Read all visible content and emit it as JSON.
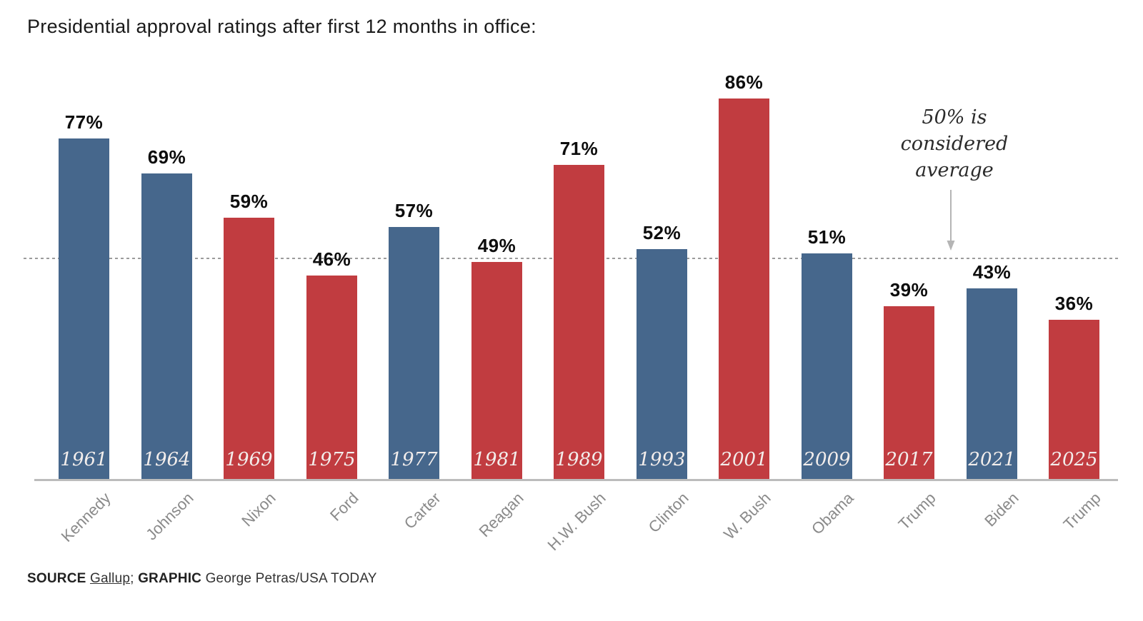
{
  "title": "Presidential approval ratings after first 12 months in office:",
  "chart_data": {
    "type": "bar",
    "categories": [
      "Kennedy",
      "Johnson",
      "Nixon",
      "Ford",
      "Carter",
      "Reagan",
      "H.W. Bush",
      "Clinton",
      "W. Bush",
      "Obama",
      "Trump",
      "Biden",
      "Trump"
    ],
    "years": [
      "1961",
      "1964",
      "1969",
      "1975",
      "1977",
      "1981",
      "1989",
      "1993",
      "2001",
      "2009",
      "2017",
      "2021",
      "2025"
    ],
    "values": [
      77,
      69,
      59,
      46,
      57,
      49,
      71,
      52,
      86,
      51,
      39,
      43,
      36
    ],
    "value_suffix": "%",
    "parties": [
      "D",
      "D",
      "R",
      "R",
      "D",
      "R",
      "R",
      "D",
      "R",
      "D",
      "R",
      "D",
      "R"
    ],
    "colors": {
      "D": "#46678C",
      "R": "#C13C40"
    },
    "ylim": [
      0,
      100
    ],
    "grid": "off",
    "reference_line": {
      "value": 50,
      "style": "dashed",
      "color": "#9c9c9c"
    },
    "annotation": {
      "lines": [
        "50% is",
        "considered",
        "average"
      ],
      "target_value": 50,
      "arrow_color": "#b5b5b5"
    },
    "title": "Presidential approval ratings after first 12 months in office:",
    "xlabel": "",
    "ylabel": ""
  },
  "source": {
    "label1": "SOURCE",
    "link": "Gallup",
    "sep": ";",
    "label2": "GRAPHIC",
    "credit": "George Petras/USA TODAY"
  }
}
